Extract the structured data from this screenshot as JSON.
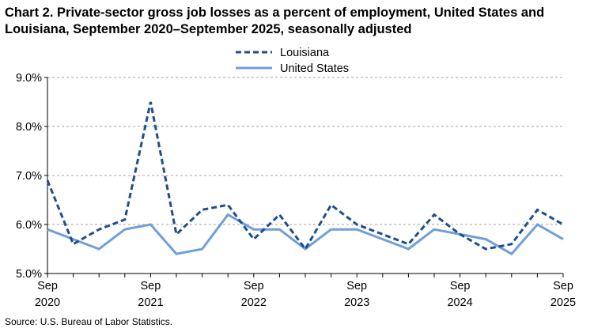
{
  "chart_data": {
    "type": "line",
    "title": "Chart 2. Private-sector gross job losses as a percent of employment, United States and Louisiana, September 2020–September 2025, seasonally adjusted",
    "source": "Source: U.S. Bureau of Labor Statistics.",
    "x": [
      "Sep 2020",
      "Dec 2020",
      "Mar 2021",
      "Jun 2021",
      "Sep 2021",
      "Dec 2021",
      "Mar 2022",
      "Jun 2022",
      "Sep 2022",
      "Dec 2022",
      "Mar 2023",
      "Jun 2023",
      "Sep 2023",
      "Dec 2023",
      "Mar 2024",
      "Jun 2024",
      "Sep 2024",
      "Dec 2024",
      "Mar 2025",
      "Jun 2025",
      "Sep 2025"
    ],
    "xticks": [
      {
        "index": 0,
        "line1": "Sep",
        "line2": "2020"
      },
      {
        "index": 4,
        "line1": "Sep",
        "line2": "2021"
      },
      {
        "index": 8,
        "line1": "Sep",
        "line2": "2022"
      },
      {
        "index": 12,
        "line1": "Sep",
        "line2": "2023"
      },
      {
        "index": 16,
        "line1": "Sep",
        "line2": "2024"
      },
      {
        "index": 20,
        "line1": "Sep",
        "line2": "2025"
      }
    ],
    "ylim": [
      5.0,
      9.0
    ],
    "yticks": [
      5.0,
      6.0,
      7.0,
      8.0,
      9.0
    ],
    "ytick_labels": [
      "5.0%",
      "6.0%",
      "7.0%",
      "8.0%",
      "9.0%"
    ],
    "grid": true,
    "legend_position": "top-center",
    "series": [
      {
        "name": "Louisiana",
        "color": "#1f4e8c",
        "style": "dashed",
        "values": [
          6.9,
          5.6,
          5.9,
          6.1,
          8.5,
          5.8,
          6.3,
          6.4,
          5.7,
          6.2,
          5.5,
          6.4,
          6.0,
          5.8,
          5.6,
          6.2,
          5.8,
          5.5,
          5.6,
          6.3,
          6.0
        ]
      },
      {
        "name": "United States",
        "color": "#6f9fd8",
        "style": "solid",
        "values": [
          5.9,
          5.7,
          5.5,
          5.9,
          6.0,
          5.4,
          5.5,
          6.2,
          5.9,
          5.9,
          5.5,
          5.9,
          5.9,
          5.7,
          5.5,
          5.9,
          5.8,
          5.7,
          5.4,
          6.0,
          5.7
        ]
      }
    ]
  }
}
